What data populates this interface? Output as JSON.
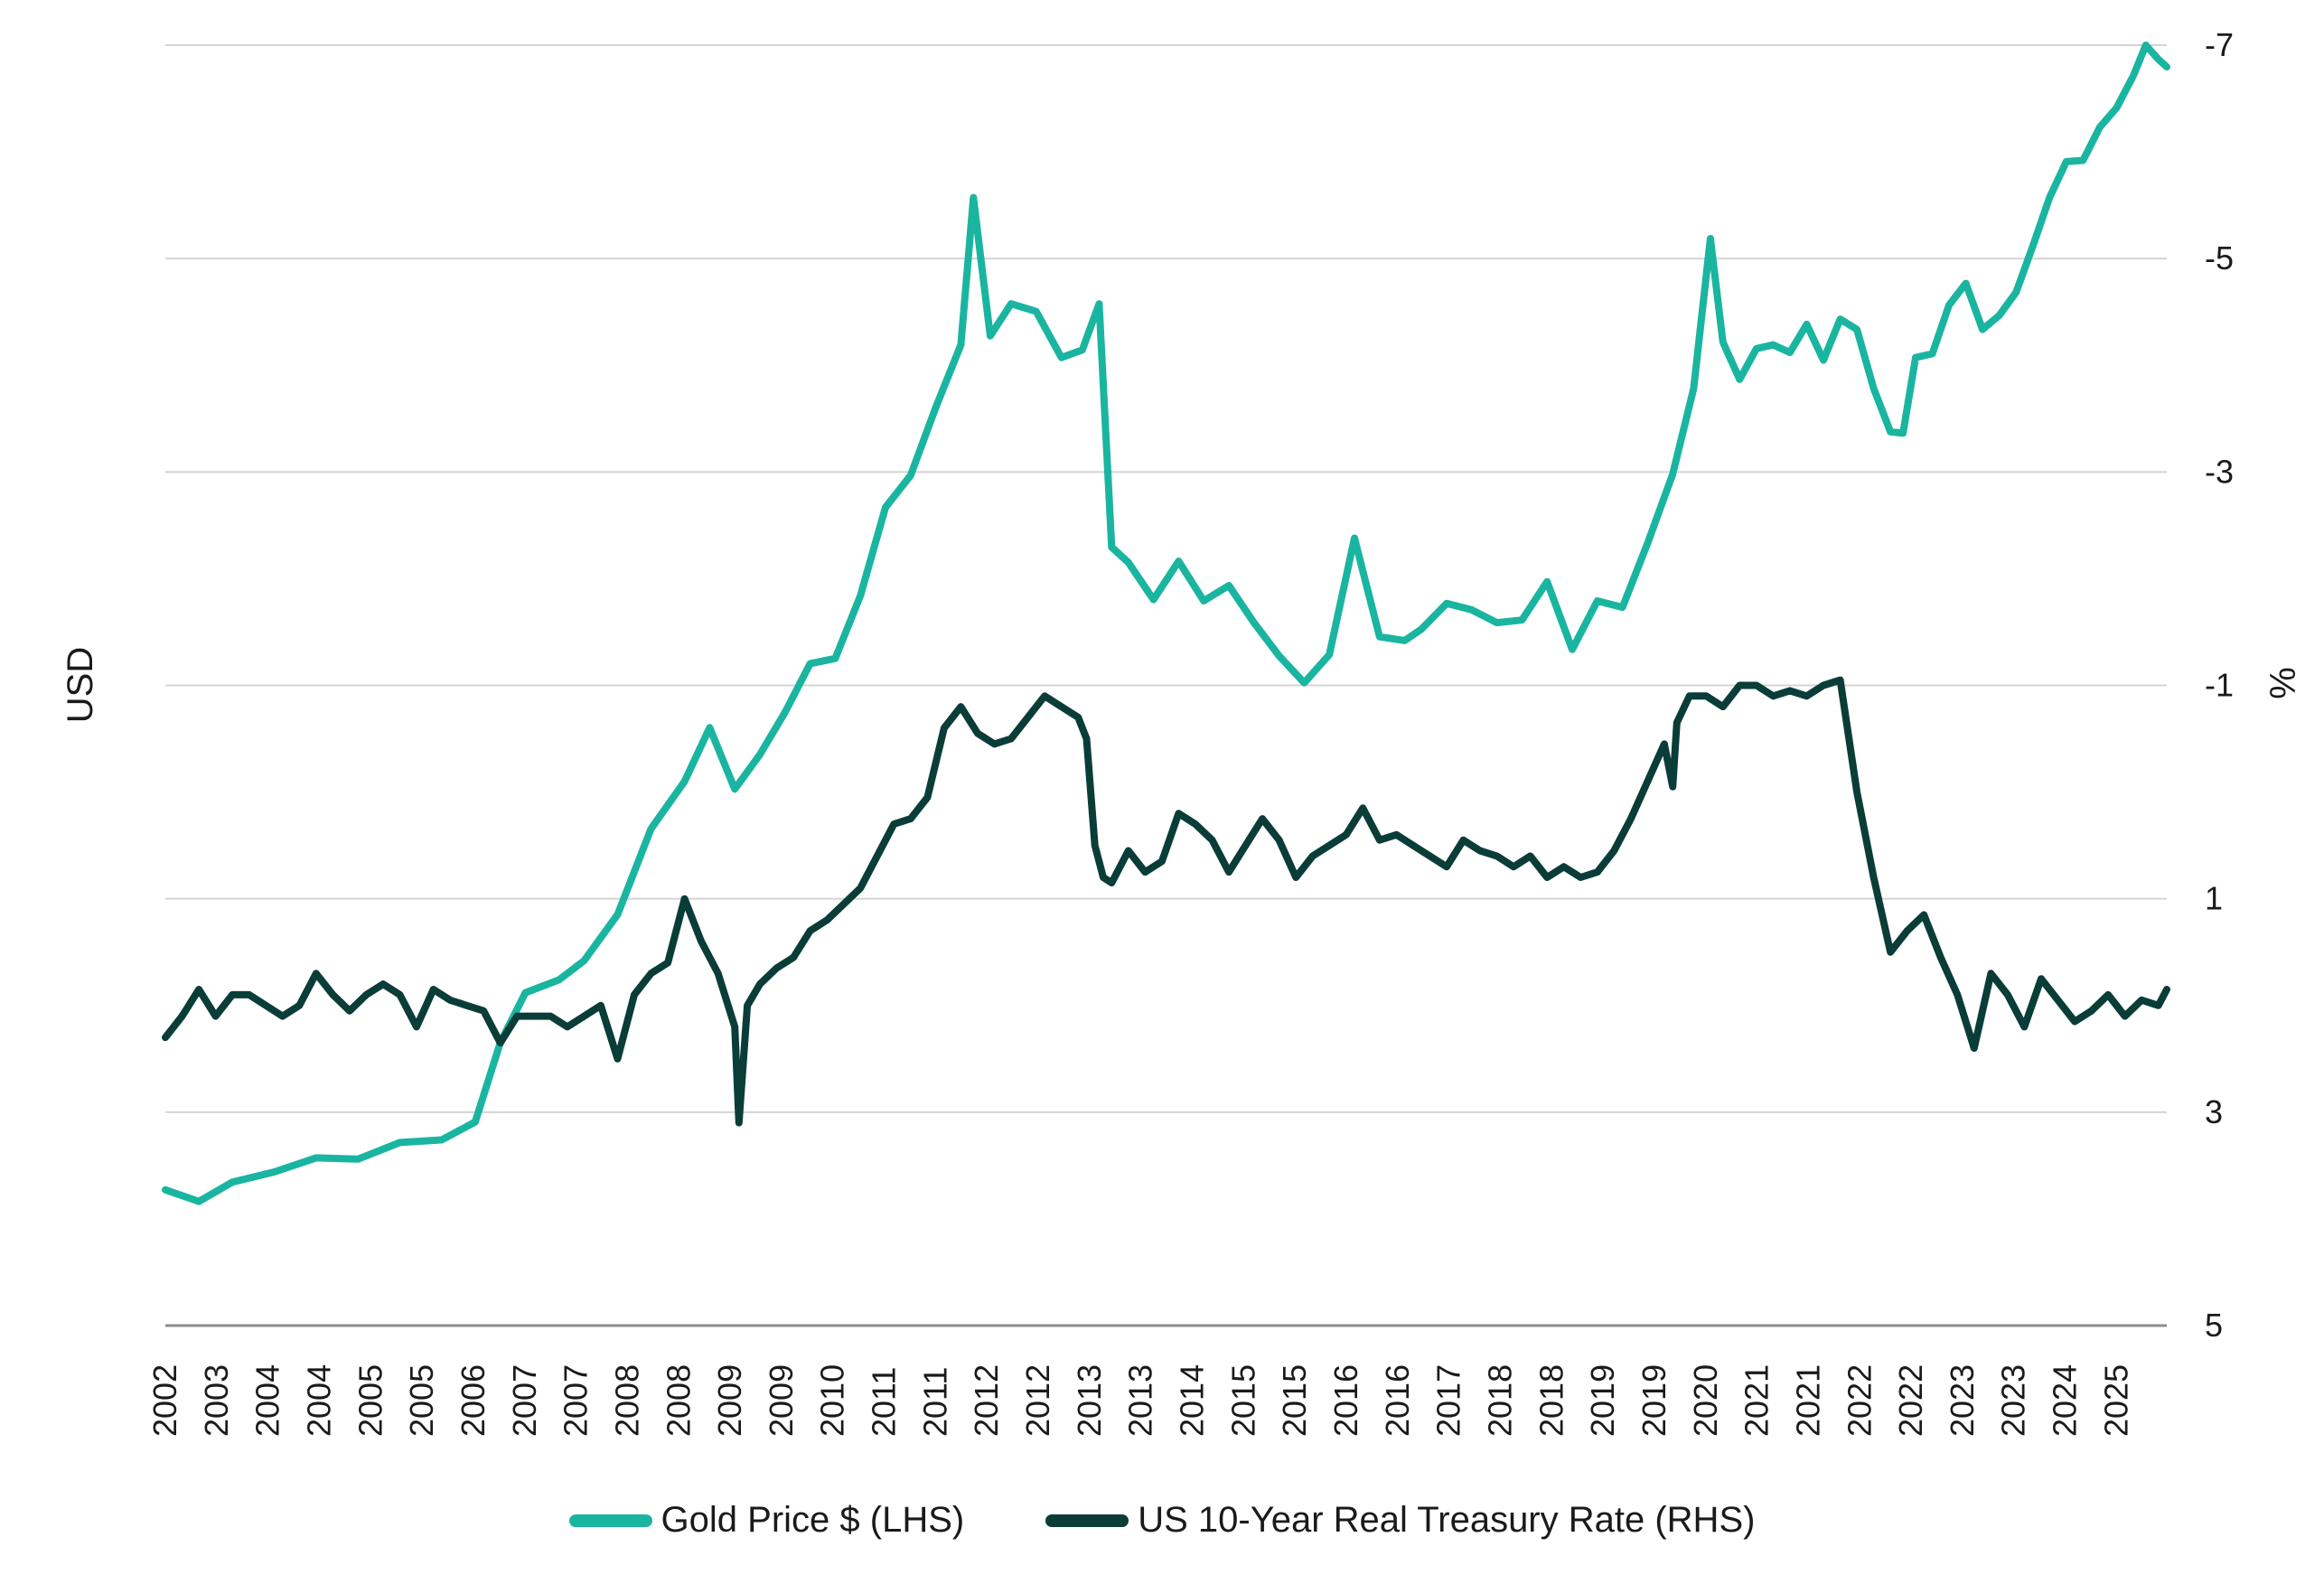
{
  "chart_data": {
    "type": "line",
    "title": "",
    "ylabel": "USD",
    "y2label": "%",
    "y2ticks": [
      "-7",
      "-5",
      "-3",
      "-1",
      "1",
      "3",
      "5"
    ],
    "y2lim": [
      5,
      -7
    ],
    "ylim": [
      0,
      1
    ],
    "grid": true,
    "legend_position": "bottom",
    "xticks": [
      "2002",
      "2003",
      "2004",
      "2004",
      "2005",
      "2005",
      "2006",
      "2007",
      "2007",
      "2008",
      "2008",
      "2009",
      "2009",
      "2010",
      "2011",
      "2011",
      "2012",
      "2012",
      "2013",
      "2013",
      "2014",
      "2015",
      "2015",
      "2016",
      "2016",
      "2017",
      "2018",
      "2018",
      "2019",
      "2019",
      "2020",
      "2021",
      "2021",
      "2022",
      "2022",
      "2023",
      "2023",
      "2024",
      "2025"
    ],
    "series": [
      {
        "name": "Gold Price $ (LHS)",
        "axis": "left",
        "color": "#1ab5a0",
        "x": [
          2002.0,
          2002.4,
          2002.8,
          2003.3,
          2003.8,
          2004.3,
          2004.8,
          2005.3,
          2005.7,
          2006.0,
          2006.3,
          2006.7,
          2007.0,
          2007.4,
          2007.8,
          2008.2,
          2008.5,
          2008.8,
          2009.1,
          2009.4,
          2009.7,
          2010.0,
          2010.3,
          2010.6,
          2010.9,
          2011.2,
          2011.5,
          2011.65,
          2011.85,
          2012.1,
          2012.4,
          2012.7,
          2012.95,
          2013.15,
          2013.3,
          2013.5,
          2013.8,
          2014.1,
          2014.4,
          2014.7,
          2015.0,
          2015.3,
          2015.6,
          2015.9,
          2016.2,
          2016.5,
          2016.8,
          2017.0,
          2017.3,
          2017.6,
          2017.9,
          2018.2,
          2018.5,
          2018.8,
          2019.1,
          2019.4,
          2019.7,
          2020.0,
          2020.25,
          2020.45,
          2020.6,
          2020.8,
          2021.0,
          2021.2,
          2021.4,
          2021.6,
          2021.8,
          2022.0,
          2022.2,
          2022.4,
          2022.6,
          2022.75,
          2022.9,
          2023.1,
          2023.3,
          2023.5,
          2023.7,
          2023.9,
          2024.1,
          2024.3,
          2024.5,
          2024.7,
          2024.9,
          2025.1,
          2025.3,
          2025.5,
          2025.65,
          2025.8,
          2025.9
        ],
        "y": [
          0.106,
          0.097,
          0.112,
          0.12,
          0.131,
          0.13,
          0.143,
          0.145,
          0.159,
          0.221,
          0.26,
          0.27,
          0.285,
          0.321,
          0.388,
          0.425,
          0.467,
          0.419,
          0.446,
          0.479,
          0.517,
          0.521,
          0.57,
          0.639,
          0.664,
          0.717,
          0.766,
          0.881,
          0.773,
          0.798,
          0.792,
          0.756,
          0.762,
          0.798,
          0.608,
          0.596,
          0.567,
          0.597,
          0.566,
          0.578,
          0.549,
          0.523,
          0.502,
          0.524,
          0.615,
          0.538,
          0.535,
          0.544,
          0.564,
          0.559,
          0.549,
          0.551,
          0.581,
          0.528,
          0.566,
          0.561,
          0.611,
          0.665,
          0.732,
          0.849,
          0.768,
          0.739,
          0.763,
          0.766,
          0.76,
          0.782,
          0.754,
          0.786,
          0.778,
          0.732,
          0.698,
          0.697,
          0.756,
          0.759,
          0.797,
          0.814,
          0.778,
          0.789,
          0.807,
          0.843,
          0.881,
          0.909,
          0.91,
          0.936,
          0.951,
          0.976,
          1.0,
          0.989,
          0.983
        ]
      },
      {
        "name": "US 10-Year Real Treasury Rate (RHS)",
        "axis": "right",
        "color": "#0a3d38",
        "x": [
          2002.0,
          2002.2,
          2002.4,
          2002.6,
          2002.8,
          2003.0,
          2003.2,
          2003.4,
          2003.6,
          2003.8,
          2004.0,
          2004.2,
          2004.4,
          2004.6,
          2004.8,
          2005.0,
          2005.2,
          2005.4,
          2005.6,
          2005.8,
          2006.0,
          2006.2,
          2006.4,
          2006.6,
          2006.8,
          2007.0,
          2007.2,
          2007.4,
          2007.6,
          2007.8,
          2008.0,
          2008.2,
          2008.4,
          2008.6,
          2008.8,
          2008.85,
          2008.95,
          2009.1,
          2009.3,
          2009.5,
          2009.7,
          2009.9,
          2010.1,
          2010.3,
          2010.5,
          2010.7,
          2010.9,
          2011.1,
          2011.3,
          2011.5,
          2011.7,
          2011.9,
          2012.1,
          2012.3,
          2012.5,
          2012.7,
          2012.9,
          2013.0,
          2013.1,
          2013.2,
          2013.3,
          2013.5,
          2013.7,
          2013.9,
          2014.1,
          2014.3,
          2014.5,
          2014.7,
          2014.9,
          2015.1,
          2015.3,
          2015.5,
          2015.7,
          2015.9,
          2016.1,
          2016.3,
          2016.5,
          2016.7,
          2016.9,
          2017.1,
          2017.3,
          2017.5,
          2017.7,
          2017.9,
          2018.1,
          2018.3,
          2018.5,
          2018.7,
          2018.9,
          2019.1,
          2019.3,
          2019.5,
          2019.7,
          2019.9,
          2020.0,
          2020.05,
          2020.2,
          2020.4,
          2020.6,
          2020.8,
          2021.0,
          2021.2,
          2021.4,
          2021.6,
          2021.8,
          2022.0,
          2022.2,
          2022.4,
          2022.6,
          2022.8,
          2023.0,
          2023.2,
          2023.4,
          2023.6,
          2023.8,
          2024.0,
          2024.2,
          2024.4,
          2024.6,
          2024.8,
          2025.0,
          2025.2,
          2025.4,
          2025.6,
          2025.8,
          2025.9
        ],
        "y": [
          2.3,
          2.1,
          1.85,
          2.1,
          1.9,
          1.9,
          2.0,
          2.1,
          2.0,
          1.7,
          1.9,
          2.05,
          1.9,
          1.8,
          1.9,
          2.2,
          1.85,
          1.95,
          2.0,
          2.05,
          2.35,
          2.1,
          2.1,
          2.1,
          2.2,
          2.1,
          2.0,
          2.5,
          1.9,
          1.7,
          1.6,
          1.0,
          1.4,
          1.7,
          2.2,
          3.1,
          2.0,
          1.8,
          1.65,
          1.55,
          1.3,
          1.2,
          1.05,
          0.9,
          0.6,
          0.3,
          0.25,
          0.05,
          -0.6,
          -0.8,
          -0.55,
          -0.45,
          -0.5,
          -0.7,
          -0.9,
          -0.8,
          -0.7,
          -0.5,
          0.5,
          0.8,
          0.85,
          0.55,
          0.75,
          0.65,
          0.2,
          0.3,
          0.45,
          0.75,
          0.5,
          0.25,
          0.45,
          0.8,
          0.6,
          0.5,
          0.4,
          0.15,
          0.45,
          0.4,
          0.5,
          0.6,
          0.7,
          0.45,
          0.55,
          0.6,
          0.7,
          0.6,
          0.8,
          0.7,
          0.8,
          0.75,
          0.55,
          0.25,
          -0.1,
          -0.45,
          -0.05,
          -0.65,
          -0.9,
          -0.9,
          -0.8,
          -1.0,
          -1.0,
          -0.9,
          -0.95,
          -0.9,
          -1.0,
          -1.05,
          0.0,
          0.8,
          1.5,
          1.3,
          1.15,
          1.55,
          1.9,
          2.4,
          1.7,
          1.9,
          2.2,
          1.75,
          1.95,
          2.15,
          2.05,
          1.9,
          2.1,
          1.95,
          2.0,
          1.85
        ]
      }
    ]
  }
}
